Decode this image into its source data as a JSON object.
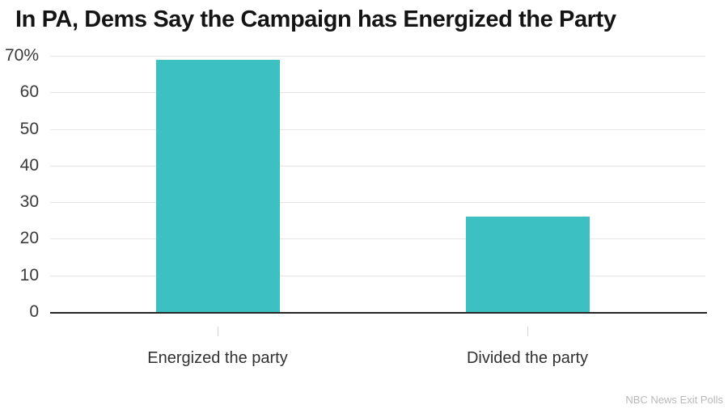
{
  "chart_data": {
    "type": "bar",
    "title": "In PA, Dems Say the Campaign has Energized the Party",
    "categories": [
      "Energized the party",
      "Divided the party"
    ],
    "values": [
      69,
      26
    ],
    "ylim": [
      0,
      70
    ],
    "y_ticks": [
      0,
      10,
      20,
      30,
      40,
      50,
      60,
      70
    ],
    "y_tick_labels": [
      "0",
      "10",
      "20",
      "30",
      "40",
      "50",
      "60",
      "70%"
    ],
    "xlabel": "",
    "ylabel": "",
    "grid": true,
    "legend": "none",
    "bar_color": "#3CC0C2",
    "source": "NBC News Exit Polls"
  }
}
